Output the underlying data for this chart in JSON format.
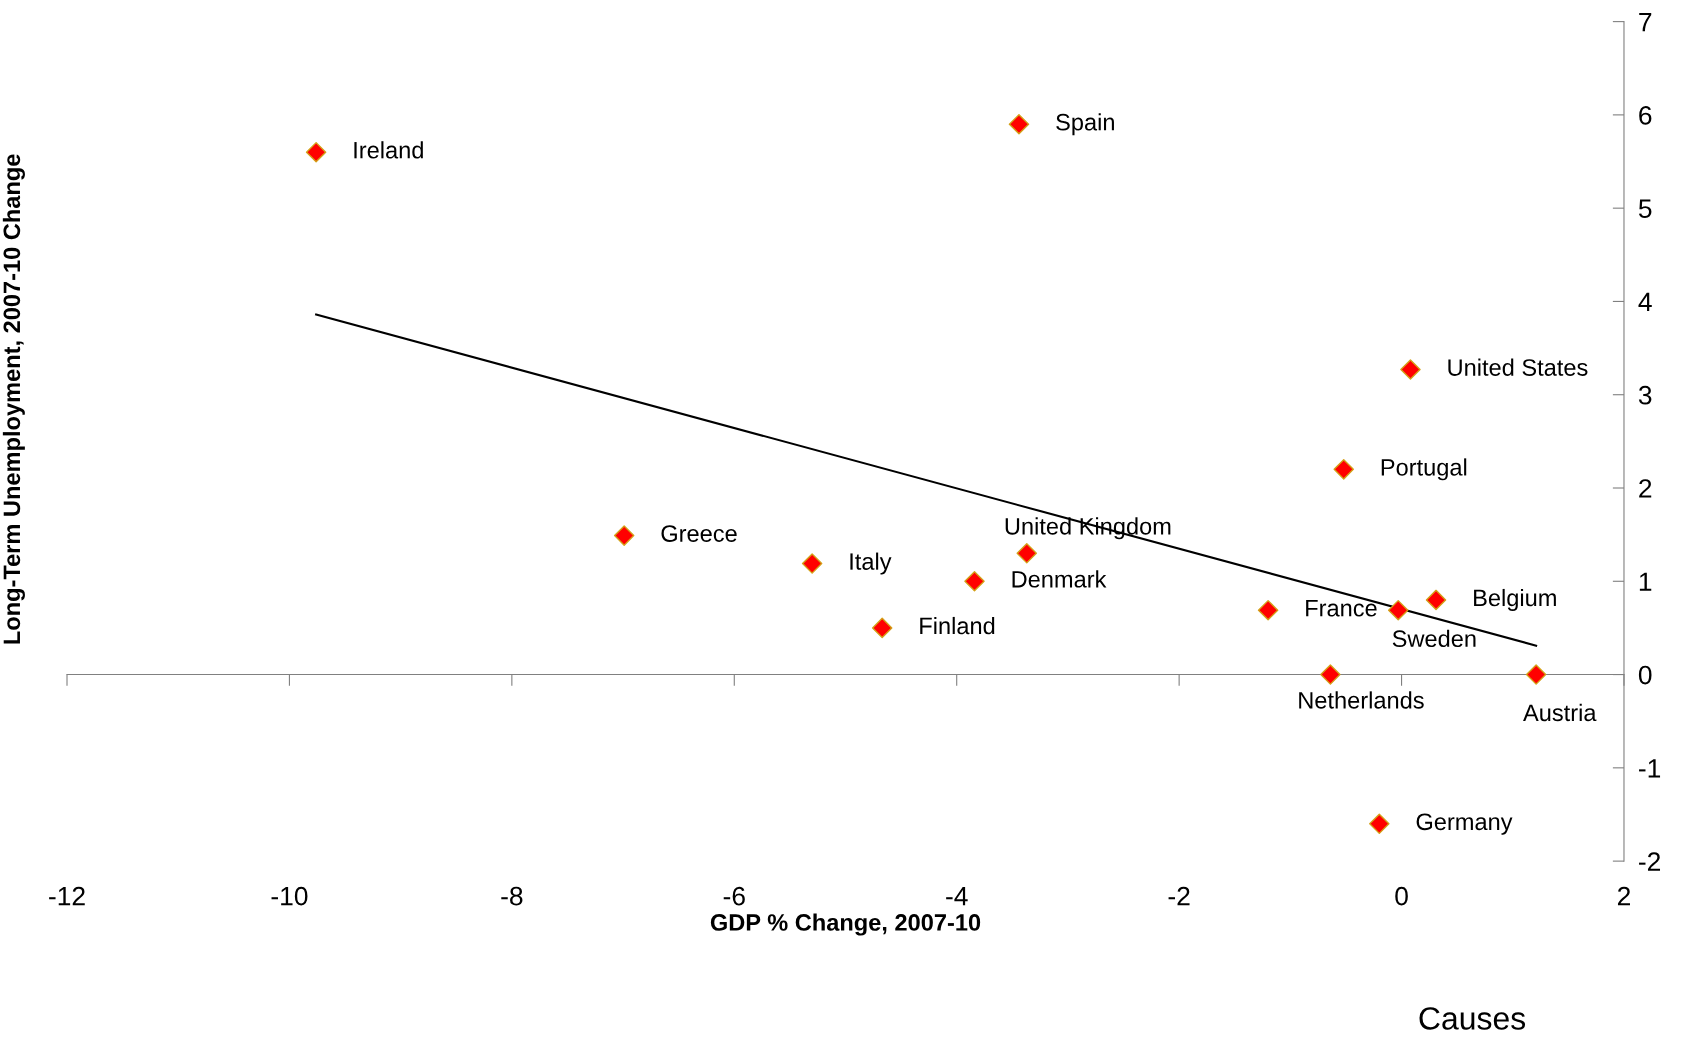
{
  "chart_data": {
    "type": "scatter",
    "xlabel": "GDP % Change, 2007-10",
    "ylabel": "Long-Term Unemployment, 2007-10 Change",
    "xlim": [
      -12,
      2
    ],
    "xticks": [
      -12,
      -10,
      -8,
      -6,
      -4,
      -2,
      0,
      2
    ],
    "ylim": [
      -2,
      7
    ],
    "yticks": [
      -2,
      -1,
      0,
      1,
      2,
      3,
      4,
      5,
      6,
      7
    ],
    "series": [
      {
        "marker": "diamond",
        "color": "#ff0000",
        "x": [
          -9.76,
          -3.44,
          0.08,
          -0.52,
          -6.99,
          -5.3,
          -3.37,
          -3.84,
          -4.67,
          -1.2,
          -0.03,
          0.31,
          -0.64,
          1.21,
          -0.2
        ],
        "values": [
          5.6,
          5.9,
          3.27,
          2.2,
          1.49,
          1.19,
          1.3,
          1.0,
          0.5,
          0.69,
          0.69,
          0.8,
          0.0,
          0.0,
          -1.6
        ]
      },
      {
        "type": "line",
        "marker": "none",
        "color": "#000000",
        "x": [
          -9.76,
          1.21
        ],
        "values": [
          3.86,
          0.31
        ]
      }
    ],
    "annotations": [
      {
        "text": "Ireland",
        "x": -9.76,
        "y": 5.6
      },
      {
        "text": "Spain",
        "x": -3.44,
        "y": 5.9
      },
      {
        "text": "United States",
        "x": 0.08,
        "y": 3.27
      },
      {
        "text": "Portugal",
        "x": -0.52,
        "y": 2.2
      },
      {
        "text": "Greece",
        "x": -6.99,
        "y": 1.49
      },
      {
        "text": "Italy",
        "x": -5.3,
        "y": 1.19
      },
      {
        "text": "United Kingdom",
        "x": -3.37,
        "y": 1.3
      },
      {
        "text": "Denmark",
        "x": -3.84,
        "y": 1.0
      },
      {
        "text": "Finland",
        "x": -4.67,
        "y": 0.5
      },
      {
        "text": "France",
        "x": -1.2,
        "y": 0.69
      },
      {
        "text": "Sweden",
        "x": -0.03,
        "y": 0.69
      },
      {
        "text": "Belgium",
        "x": 0.31,
        "y": 0.8
      },
      {
        "text": "Netherlands",
        "x": -0.64,
        "y": 0.0
      },
      {
        "text": "Austria",
        "x": 1.21,
        "y": 0.0
      },
      {
        "text": "Germany",
        "x": -0.2,
        "y": -1.6
      },
      "Causes"
    ]
  }
}
